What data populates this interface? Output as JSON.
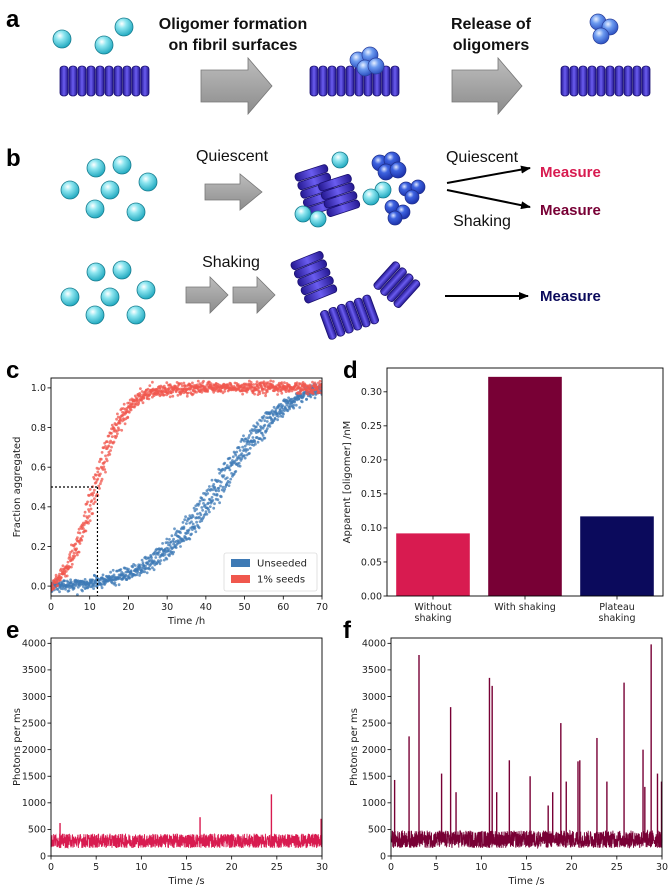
{
  "panels": {
    "a": {
      "letter": "a",
      "step1": [
        "Oligomer formation",
        "on fibril surfaces"
      ],
      "step2": [
        "Release of",
        "oligomers"
      ]
    },
    "b": {
      "letter": "b",
      "quiescent": "Quiescent",
      "quiescent2": "Quiescent",
      "shaking": "Shaking",
      "shaking2": "Shaking",
      "measure1": "Measure",
      "measure2": "Measure",
      "measure3": "Measure"
    },
    "c": {
      "letter": "c"
    },
    "d": {
      "letter": "d"
    },
    "e": {
      "letter": "e"
    },
    "f": {
      "letter": "f"
    }
  },
  "colors": {
    "monomer": "#5ad0e0",
    "oligomer": "#3f6fd8",
    "fibril": "#3a2fc0",
    "arrow": "#a6a6a6",
    "unseeded": "#3e7ab5",
    "seeds": "#f0574d",
    "bar1": "#d81b50",
    "bar2": "#780035",
    "bar3": "#0b0a5c",
    "measure_red": "#d81b50",
    "measure_maroon": "#780035",
    "measure_navy": "#0b0a5c"
  },
  "chart_data": [
    {
      "panel": "c",
      "type": "scatter",
      "xlabel": "Time /h",
      "ylabel": "Fraction aggregated",
      "xlim": [
        0,
        70
      ],
      "ylim": [
        -0.05,
        1.05
      ],
      "xticks": [
        0,
        10,
        20,
        30,
        40,
        50,
        60,
        70
      ],
      "yticks": [
        0.0,
        0.2,
        0.4,
        0.6,
        0.8,
        1.0
      ],
      "legend_position": "lower-right",
      "annotation": {
        "x": 12,
        "y": 0.5,
        "style": "dotted"
      },
      "series": [
        {
          "name": "Unseeded",
          "color": "#3e7ab5",
          "halftimes": [
            42,
            44,
            46
          ],
          "k": 0.11
        },
        {
          "name": "1% seeds",
          "color": "#f0574d",
          "halftimes": [
            10,
            11,
            12
          ],
          "k": 0.25
        }
      ]
    },
    {
      "panel": "d",
      "type": "bar",
      "ylabel": "Apparent [oligomer] /nM",
      "categories": [
        "Without shaking",
        "With shaking",
        "Plateau shaking"
      ],
      "category_lines": [
        [
          "Without",
          "shaking"
        ],
        [
          "With shaking"
        ],
        [
          "Plateau",
          "shaking"
        ]
      ],
      "values": [
        0.092,
        0.322,
        0.117
      ],
      "colors": [
        "#d81b50",
        "#780035",
        "#0b0a5c"
      ],
      "ylim": [
        0,
        0.335
      ],
      "yticks": [
        0.0,
        0.05,
        0.1,
        0.15,
        0.2,
        0.25,
        0.3
      ],
      "ytick_labels": [
        "0.00",
        "0.05",
        "0.10",
        "0.15",
        "0.20",
        "0.25",
        "0.30"
      ]
    },
    {
      "panel": "e",
      "type": "line",
      "xlabel": "Time /s",
      "ylabel": "Photons per ms",
      "xlim": [
        0,
        30
      ],
      "ylim": [
        0,
        4100
      ],
      "xticks": [
        0,
        5,
        10,
        15,
        20,
        25,
        30
      ],
      "yticks": [
        0,
        500,
        1000,
        1500,
        2000,
        2500,
        3000,
        3500,
        4000
      ],
      "color": "#d81b50",
      "baseline_range": [
        150,
        420
      ],
      "spikes": [
        [
          1.0,
          620
        ],
        [
          16.5,
          730
        ],
        [
          24.4,
          1160
        ],
        [
          29.9,
          700
        ]
      ]
    },
    {
      "panel": "f",
      "type": "line",
      "xlabel": "Time /s",
      "ylabel": "Photons per ms",
      "xlim": [
        0,
        30
      ],
      "ylim": [
        0,
        4100
      ],
      "xticks": [
        0,
        5,
        10,
        15,
        20,
        25,
        30
      ],
      "yticks": [
        0,
        500,
        1000,
        1500,
        2000,
        2500,
        3000,
        3500,
        4000
      ],
      "color": "#780035",
      "baseline_range": [
        150,
        480
      ],
      "spikes": [
        [
          0.4,
          1430
        ],
        [
          2.0,
          2250
        ],
        [
          3.1,
          3780
        ],
        [
          5.6,
          1550
        ],
        [
          6.6,
          2800
        ],
        [
          7.2,
          1200
        ],
        [
          10.9,
          3350
        ],
        [
          11.2,
          3200
        ],
        [
          11.7,
          1200
        ],
        [
          13.1,
          1800
        ],
        [
          15.4,
          1500
        ],
        [
          17.4,
          950
        ],
        [
          17.9,
          1200
        ],
        [
          18.8,
          2500
        ],
        [
          19.4,
          1400
        ],
        [
          20.7,
          1780
        ],
        [
          20.9,
          1800
        ],
        [
          22.8,
          2220
        ],
        [
          23.9,
          1400
        ],
        [
          25.8,
          3260
        ],
        [
          27.9,
          2000
        ],
        [
          28.1,
          1300
        ],
        [
          28.8,
          3980
        ],
        [
          29.5,
          1550
        ],
        [
          30.0,
          1400
        ]
      ]
    }
  ]
}
